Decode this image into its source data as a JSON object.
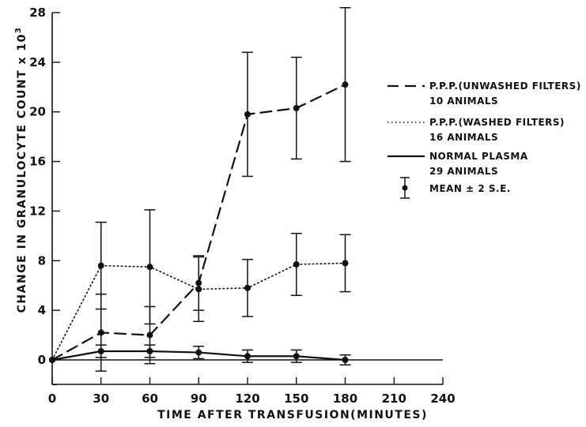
{
  "chart_data": {
    "type": "line",
    "xlabel": "TIME AFTER TRANSFUSION(MINUTES)",
    "ylabel": "CHANGE IN GRANULOCYTE COUNT x 10",
    "ylabel_superscript": "3",
    "xlim": [
      0,
      240
    ],
    "ylim": [
      -2,
      28
    ],
    "xticks": [
      0,
      30,
      60,
      90,
      120,
      150,
      180,
      210,
      240
    ],
    "yticks": [
      0,
      4,
      8,
      12,
      16,
      20,
      24,
      28
    ],
    "grid": false,
    "legend_position": "right",
    "series": [
      {
        "key": "unwashed",
        "name_line1": "P.P.P.(UNWASHED FILTERS)",
        "name_line2": "10 ANIMALS",
        "style": "dashed",
        "x": [
          0,
          30,
          60,
          90,
          120,
          150,
          180
        ],
        "y": [
          0,
          2.2,
          2.0,
          6.2,
          19.8,
          20.3,
          22.2
        ],
        "err": [
          0,
          3.1,
          2.3,
          2.2,
          5.0,
          4.1,
          6.2
        ]
      },
      {
        "key": "washed",
        "name_line1": "P.P.P.(WASHED FILTERS)",
        "name_line2": "16 ANIMALS",
        "style": "dotted",
        "x": [
          0,
          30,
          60,
          90,
          120,
          150,
          180
        ],
        "y": [
          0,
          7.6,
          7.5,
          5.7,
          5.8,
          7.7,
          7.8
        ],
        "err": [
          0,
          3.5,
          4.6,
          2.6,
          2.3,
          2.5,
          2.3
        ]
      },
      {
        "key": "normal",
        "name_line1": "NORMAL PLASMA",
        "name_line2": "29 ANIMALS",
        "style": "solid",
        "x": [
          0,
          30,
          60,
          90,
          120,
          150,
          180
        ],
        "y": [
          0,
          0.7,
          0.7,
          0.6,
          0.3,
          0.3,
          0.0
        ],
        "err": [
          0,
          0.5,
          0.5,
          0.5,
          0.5,
          0.5,
          0.4
        ]
      }
    ],
    "baseline": 0,
    "legend_errorbar_label": "MEAN ± 2 S.E."
  }
}
